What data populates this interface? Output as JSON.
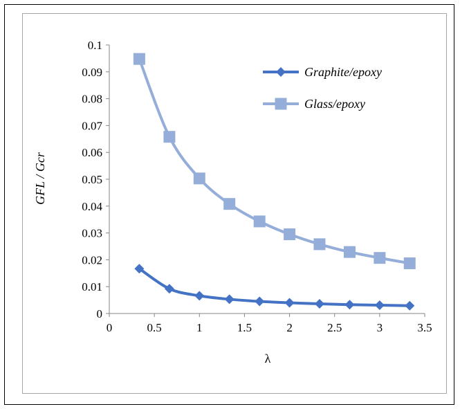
{
  "chart_data": {
    "type": "line",
    "title": "",
    "xlabel": "λ",
    "ylabel": "GFL / Gcr",
    "xlim": [
      0,
      3.5
    ],
    "ylim": [
      0,
      0.1
    ],
    "x_ticks": [
      "0",
      "0.5",
      "1",
      "1.5",
      "2",
      "2.5",
      "3",
      "3.5"
    ],
    "y_ticks": [
      "0",
      "0.01",
      "0.02",
      "0.03",
      "0.04",
      "0.05",
      "0.06",
      "0.07",
      "0.08",
      "0.09",
      "0.1"
    ],
    "grid": false,
    "legend_position": "top-right",
    "x": [
      0.333,
      0.667,
      1.0,
      1.333,
      1.667,
      2.0,
      2.333,
      2.667,
      3.0,
      3.333
    ],
    "series": [
      {
        "name": "Graphite/epoxy",
        "color": "#4472c4",
        "marker": "diamond",
        "values": [
          0.0167,
          0.0092,
          0.0066,
          0.0053,
          0.0045,
          0.004,
          0.0036,
          0.0033,
          0.0031,
          0.0029
        ]
      },
      {
        "name": "Glass/epoxy",
        "color": "#95aed9",
        "marker": "square",
        "values": [
          0.0948,
          0.0658,
          0.0503,
          0.0408,
          0.0343,
          0.0295,
          0.0258,
          0.0229,
          0.0207,
          0.0187
        ]
      }
    ]
  }
}
